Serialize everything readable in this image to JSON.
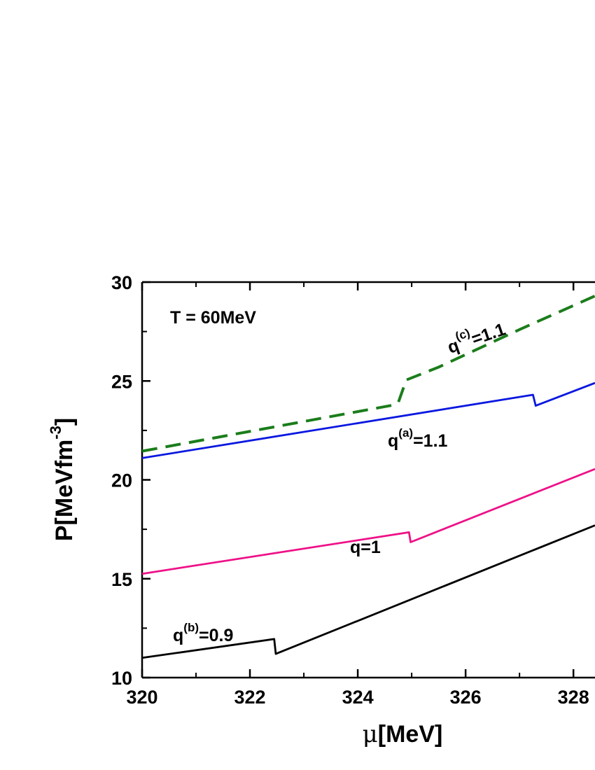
{
  "chart_data": {
    "type": "line",
    "title": "",
    "xlabel": {
      "symbol": "μ",
      "unit": "[MeV]"
    },
    "ylabel": {
      "base": "P[MeVfm",
      "sup": "-3",
      "close": "]"
    },
    "xlim": [
      320,
      328.4
    ],
    "ylim": [
      10,
      30
    ],
    "xticks": [
      320,
      322,
      324,
      326,
      328
    ],
    "yticks": [
      10,
      15,
      20,
      25,
      30
    ],
    "grid": false,
    "legend": "none",
    "annotation_T": "T = 60MeV",
    "series": [
      {
        "label": {
          "base": "q",
          "sup": "(c)",
          "rest": "=1.1"
        },
        "color": "#1b7d1b",
        "style": "dashed",
        "x": [
          320,
          324.7,
          324.75,
          324.9,
          325.5,
          327,
          328.4
        ],
        "y": [
          21.45,
          23.8,
          23.9,
          25.05,
          25.7,
          27.6,
          29.3
        ]
      },
      {
        "label": {
          "base": "q",
          "sup": "(a)",
          "rest": "=1.1"
        },
        "color": "#0a18e0",
        "style": "solid",
        "x": [
          320,
          327.25,
          327.3,
          328.4
        ],
        "y": [
          21.1,
          24.3,
          23.75,
          24.9
        ]
      },
      {
        "label": {
          "base": "q",
          "sup": "",
          "rest": "=1"
        },
        "color": "#ee1188",
        "style": "solid",
        "x": [
          320,
          324.95,
          324.98,
          328.4
        ],
        "y": [
          15.25,
          17.35,
          16.85,
          20.55
        ]
      },
      {
        "label": {
          "base": "q",
          "sup": "(b)",
          "rest": "=0.9"
        },
        "color": "#000000",
        "style": "solid",
        "x": [
          320,
          322.45,
          322.48,
          328.4
        ],
        "y": [
          11.0,
          11.95,
          11.2,
          17.7
        ]
      }
    ]
  }
}
